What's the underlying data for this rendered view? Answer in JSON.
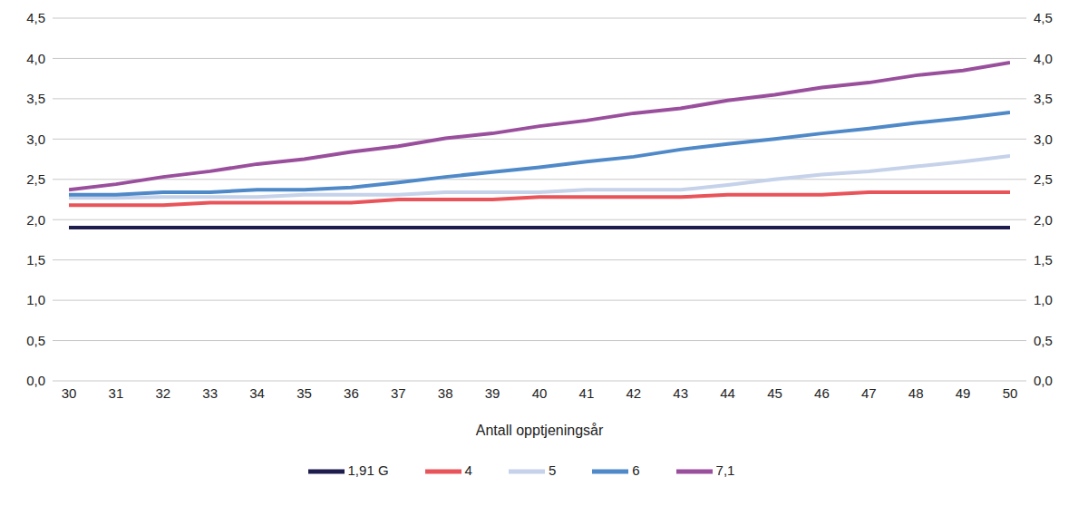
{
  "chart_data": {
    "type": "line",
    "x_label": "Antall opptjeningsår",
    "x": [
      30,
      31,
      32,
      33,
      34,
      35,
      36,
      37,
      38,
      39,
      40,
      41,
      42,
      43,
      44,
      45,
      46,
      47,
      48,
      49,
      50
    ],
    "xlim": [
      30,
      50
    ],
    "xticks": [
      30,
      31,
      32,
      33,
      34,
      35,
      36,
      37,
      38,
      39,
      40,
      41,
      42,
      43,
      44,
      45,
      46,
      47,
      48,
      49,
      50
    ],
    "ylim": [
      0,
      4.5
    ],
    "yticks": [
      {
        "value": 0,
        "label": "0,0"
      },
      {
        "value": 0.5,
        "label": "0,5"
      },
      {
        "value": 1,
        "label": "1,0"
      },
      {
        "value": 1.5,
        "label": "1,5"
      },
      {
        "value": 2,
        "label": "2,0"
      },
      {
        "value": 2.5,
        "label": "2,5"
      },
      {
        "value": 3,
        "label": "3,0"
      },
      {
        "value": 3.5,
        "label": "3,5"
      },
      {
        "value": 4,
        "label": "4,0"
      },
      {
        "value": 4.5,
        "label": "4,5"
      }
    ],
    "grid": true,
    "legend": "bottom",
    "series": [
      {
        "name": "1,91 G",
        "color": "#1f1d4d",
        "values": [
          1.9,
          1.9,
          1.9,
          1.9,
          1.9,
          1.9,
          1.9,
          1.9,
          1.9,
          1.9,
          1.9,
          1.9,
          1.9,
          1.9,
          1.9,
          1.9,
          1.9,
          1.9,
          1.9,
          1.9,
          1.9
        ]
      },
      {
        "name": "4",
        "color": "#e8545a",
        "values": [
          2.18,
          2.18,
          2.18,
          2.21,
          2.21,
          2.21,
          2.21,
          2.25,
          2.25,
          2.25,
          2.28,
          2.28,
          2.28,
          2.28,
          2.31,
          2.31,
          2.31,
          2.34,
          2.34,
          2.34,
          2.34
        ]
      },
      {
        "name": "5",
        "color": "#c5d2ea",
        "values": [
          2.27,
          2.27,
          2.28,
          2.28,
          2.28,
          2.31,
          2.31,
          2.31,
          2.34,
          2.34,
          2.34,
          2.37,
          2.37,
          2.37,
          2.43,
          2.5,
          2.56,
          2.6,
          2.66,
          2.72,
          2.79
        ]
      },
      {
        "name": "6",
        "color": "#4f89c8",
        "values": [
          2.31,
          2.31,
          2.34,
          2.34,
          2.37,
          2.37,
          2.4,
          2.46,
          2.53,
          2.59,
          2.65,
          2.72,
          2.78,
          2.87,
          2.94,
          3.0,
          3.07,
          3.13,
          3.2,
          3.26,
          3.33
        ]
      },
      {
        "name": "7,1",
        "color": "#9a4f9d",
        "values": [
          2.37,
          2.44,
          2.53,
          2.6,
          2.69,
          2.75,
          2.84,
          2.91,
          3.01,
          3.07,
          3.16,
          3.23,
          3.32,
          3.38,
          3.48,
          3.55,
          3.64,
          3.7,
          3.79,
          3.85,
          3.95
        ]
      }
    ]
  }
}
